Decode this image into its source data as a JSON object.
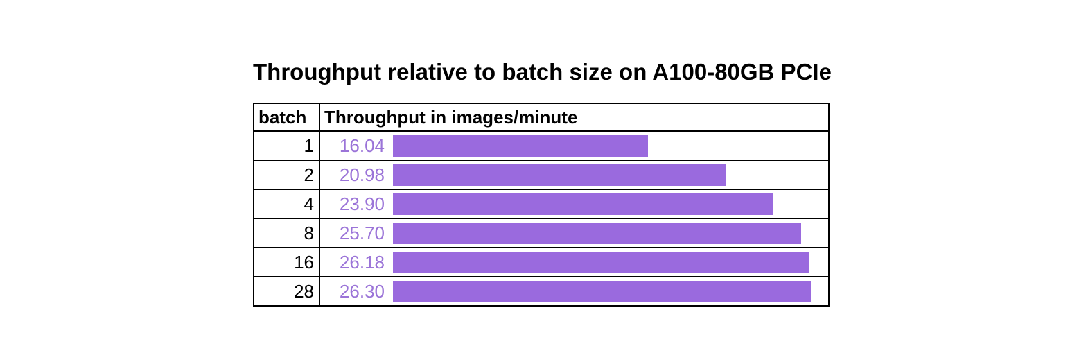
{
  "title": "Throughput relative to batch size on A100-80GB PCIe",
  "table": {
    "columns": {
      "batch": "batch",
      "throughput": "Throughput in images/minute"
    },
    "rows": [
      {
        "batch": "1",
        "throughput": "16.04"
      },
      {
        "batch": "2",
        "throughput": "20.98"
      },
      {
        "batch": "4",
        "throughput": "23.90"
      },
      {
        "batch": "8",
        "throughput": "25.70"
      },
      {
        "batch": "16",
        "throughput": "26.18"
      },
      {
        "batch": "28",
        "throughput": "26.30"
      }
    ]
  },
  "colors": {
    "bar": "#9a6ade",
    "value_text": "#9b74d8",
    "border": "#000000",
    "title_text": "#000000"
  },
  "chart_data": {
    "type": "bar",
    "orientation": "horizontal",
    "title": "Throughput relative to batch size on A100-80GB PCIe",
    "categories": [
      1,
      2,
      4,
      8,
      16,
      28
    ],
    "values": [
      16.04,
      20.98,
      23.9,
      25.7,
      26.18,
      26.3
    ],
    "value_labels": [
      "16.04",
      "20.98",
      "23.90",
      "25.70",
      "26.18",
      "26.30"
    ],
    "xlabel": "Throughput in images/minute",
    "ylabel": "batch",
    "xlim": [
      0,
      27.3
    ],
    "grid": false,
    "legend_position": "none",
    "bar_color": "#9a6ade"
  }
}
